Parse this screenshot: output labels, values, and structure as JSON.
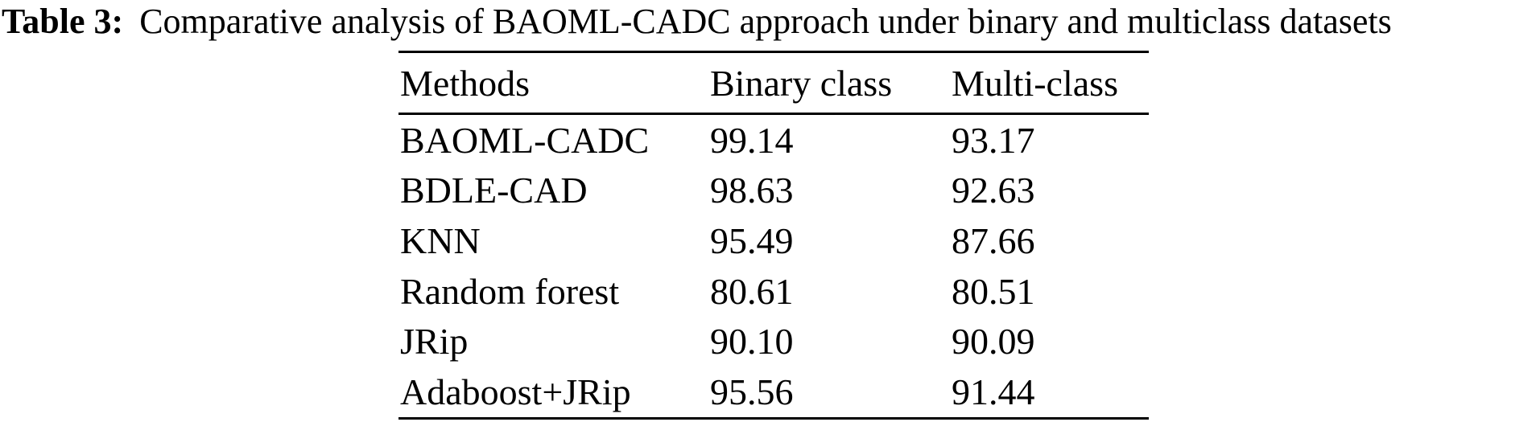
{
  "page": {
    "background_color": "#ffffff",
    "text_color": "#000000"
  },
  "caption": {
    "label": "Table 3:",
    "text": "Comparative analysis of BAOML-CADC approach under binary and multiclass datasets"
  },
  "table": {
    "columns": [
      "Methods",
      "Binary class",
      "Multi-class"
    ],
    "rows": [
      {
        "method": "BAOML-CADC",
        "binary": "99.14",
        "multi": "93.17"
      },
      {
        "method": "BDLE-CAD",
        "binary": "98.63",
        "multi": "92.63"
      },
      {
        "method": "KNN",
        "binary": "95.49",
        "multi": "87.66"
      },
      {
        "method": "Random forest",
        "binary": "80.61",
        "multi": "80.51"
      },
      {
        "method": "JRip",
        "binary": "90.10",
        "multi": "90.09"
      },
      {
        "method": "Adaboost+JRip",
        "binary": "95.56",
        "multi": "91.44"
      }
    ]
  },
  "chart_data": {
    "type": "table",
    "title": "Table 3: Comparative analysis of BAOML-CADC approach under binary and multiclass datasets",
    "columns": [
      "Methods",
      "Binary class",
      "Multi-class"
    ],
    "categories": [
      "BAOML-CADC",
      "BDLE-CAD",
      "KNN",
      "Random forest",
      "JRip",
      "Adaboost+JRip"
    ],
    "series": [
      {
        "name": "Binary class",
        "values": [
          99.14,
          98.63,
          95.49,
          80.61,
          90.1,
          95.56
        ]
      },
      {
        "name": "Multi-class",
        "values": [
          93.17,
          92.63,
          87.66,
          80.51,
          90.09,
          91.44
        ]
      }
    ]
  }
}
